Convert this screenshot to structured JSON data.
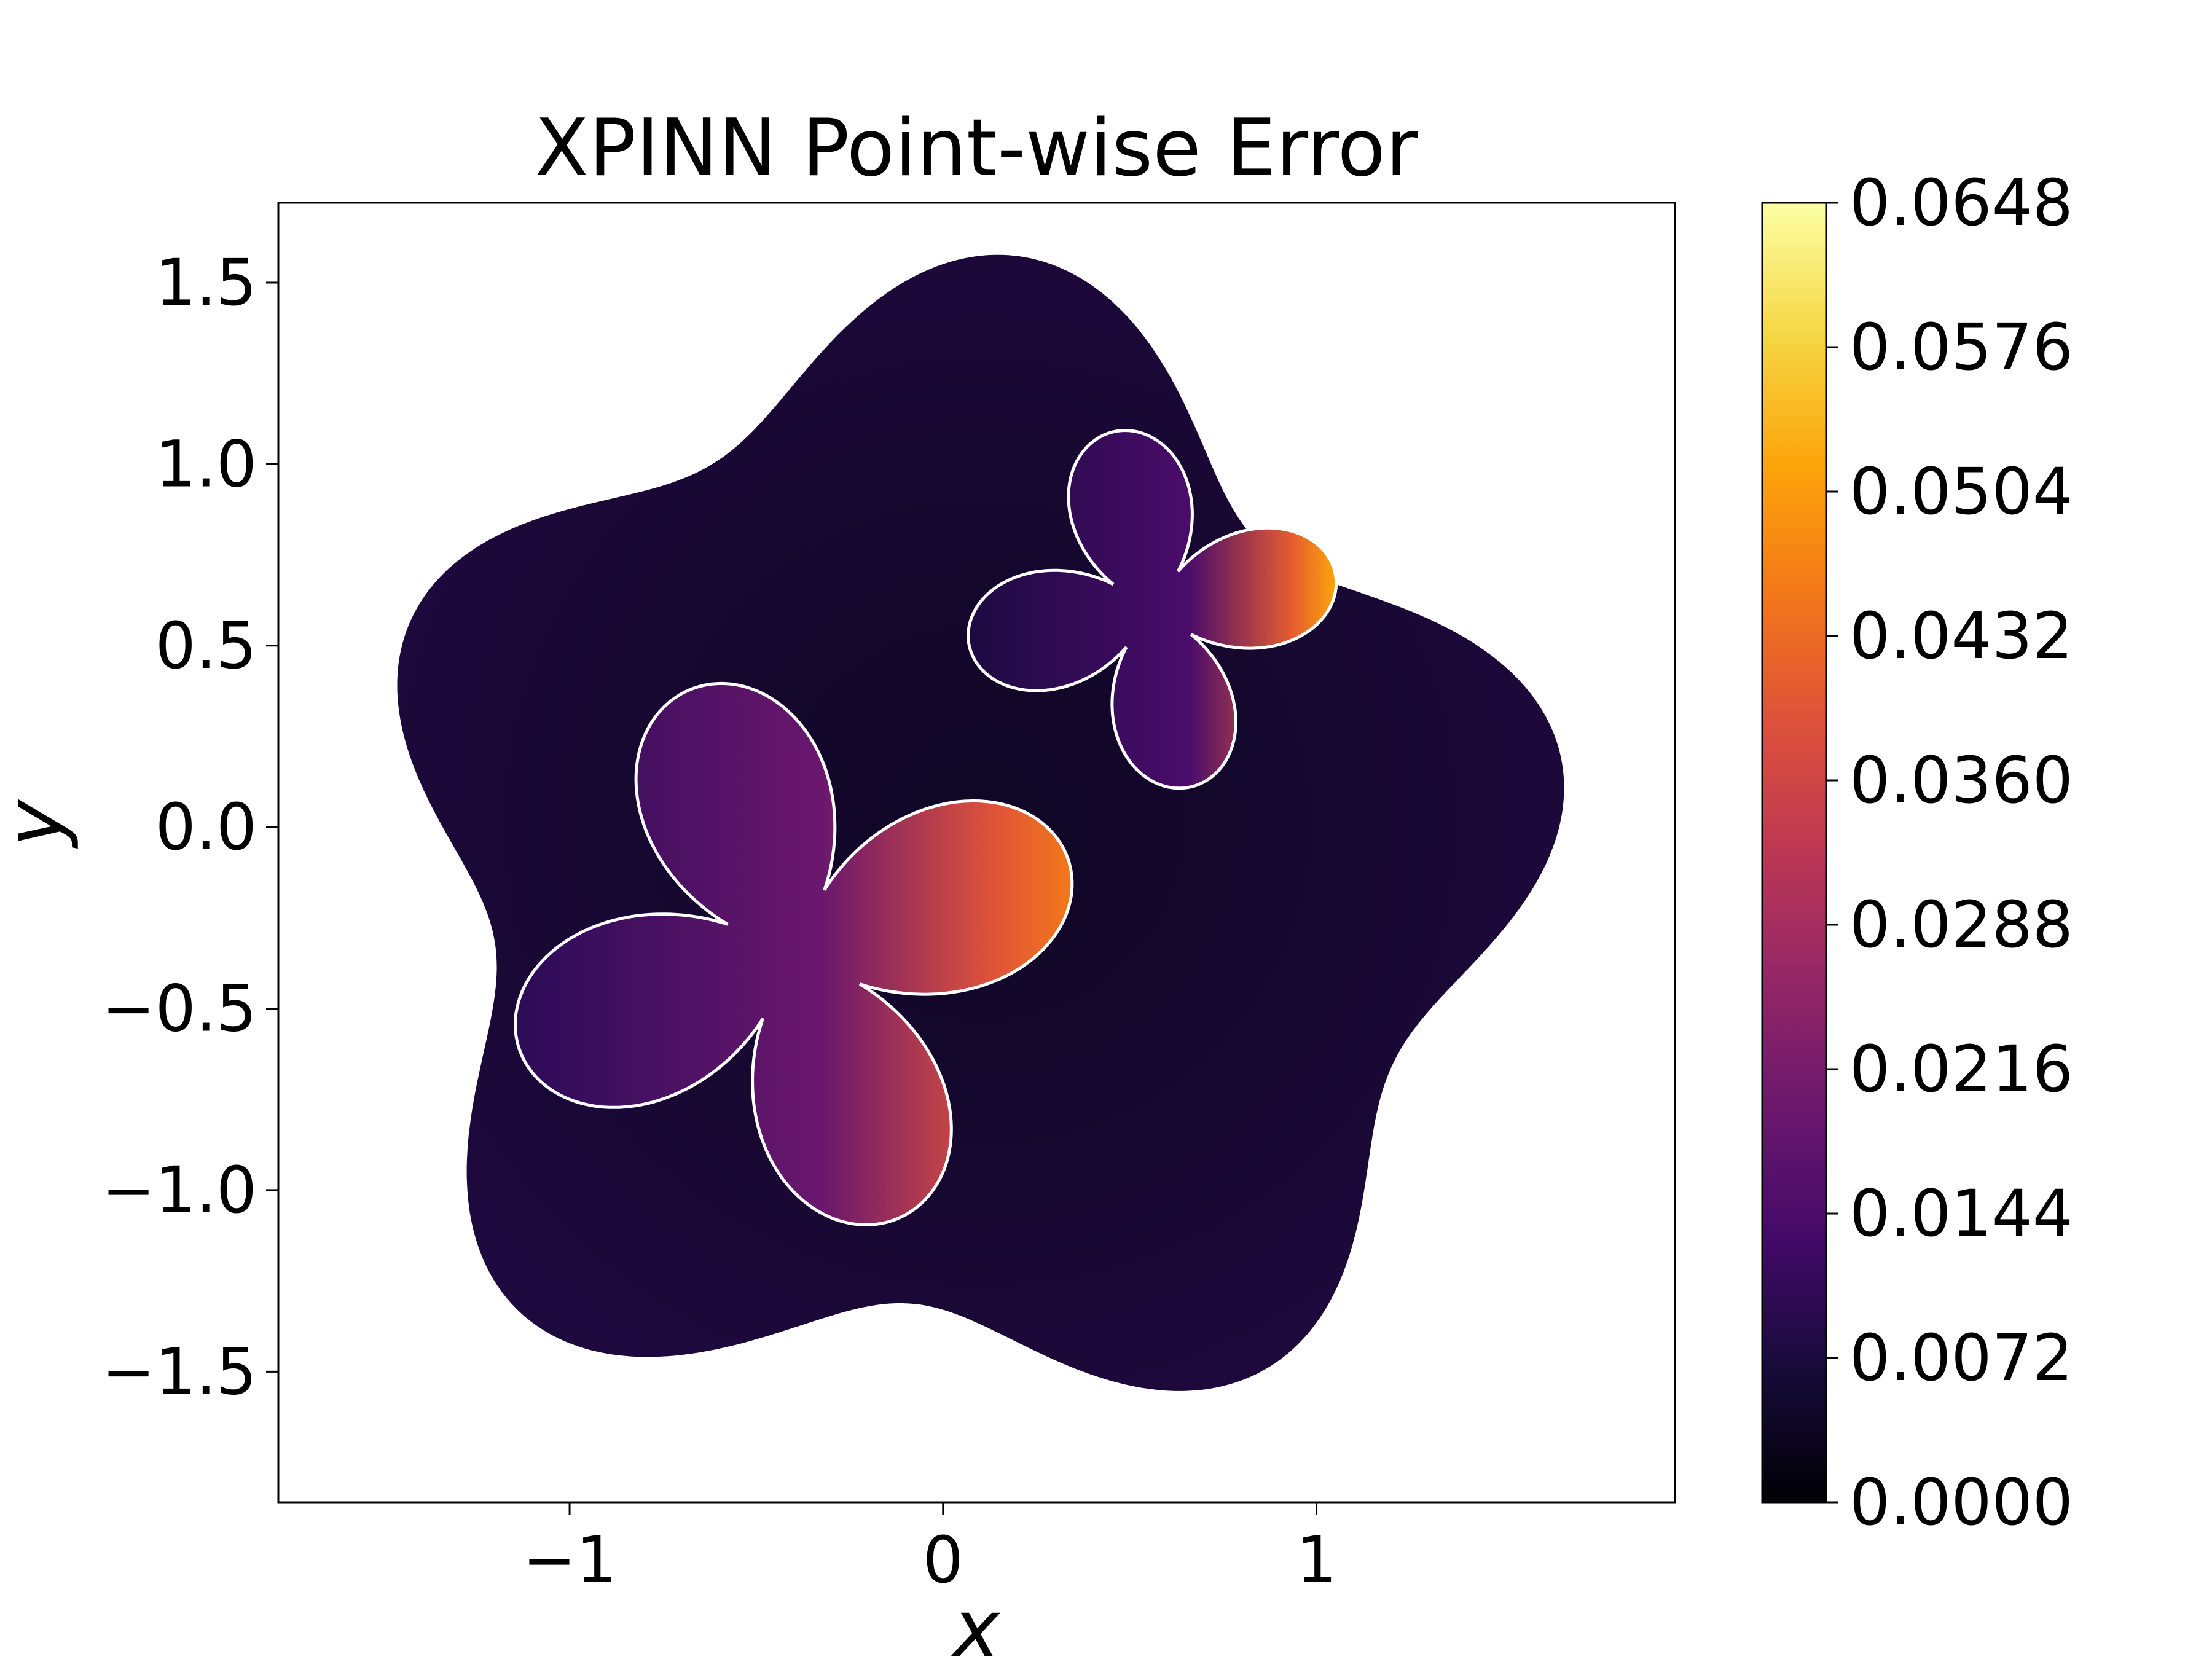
{
  "chart_data": {
    "type": "heatmap",
    "title": "XPINN Point-wise Error",
    "xlabel": "x",
    "ylabel": "y",
    "xlim": [
      -1.78,
      1.96
    ],
    "ylim": [
      -1.86,
      1.72
    ],
    "xticks": [
      -1,
      0,
      1
    ],
    "xtick_labels": [
      "−1",
      "0",
      "1"
    ],
    "yticks": [
      1.5,
      1.0,
      0.5,
      0.0,
      -0.5,
      -1.0,
      -1.5
    ],
    "ytick_labels": [
      "1.5",
      "1.0",
      "0.5",
      "0.0",
      "−0.5",
      "−1.0",
      "−1.5"
    ],
    "colormap": "inferno",
    "colorbar": {
      "range": [
        0.0,
        0.0648
      ],
      "ticks": [
        0.0,
        0.0072,
        0.0144,
        0.0216,
        0.0288,
        0.036,
        0.0432,
        0.0504,
        0.0576,
        0.0648
      ],
      "tick_labels": [
        "0.0000",
        "0.0072",
        "0.0144",
        "0.0216",
        "0.0288",
        "0.0360",
        "0.0432",
        "0.0504",
        "0.0576",
        "0.0648"
      ]
    },
    "domain_max_error": 0.0648,
    "outer_boundary_color": "#000000",
    "interface_color": "#ffffff",
    "subdomains": [
      {
        "center": [
          -0.4,
          -0.35
        ],
        "petals": 4,
        "max_error": 0.047
      },
      {
        "center": [
          0.56,
          0.6
        ],
        "petals": 4,
        "max_error": 0.058
      }
    ]
  }
}
